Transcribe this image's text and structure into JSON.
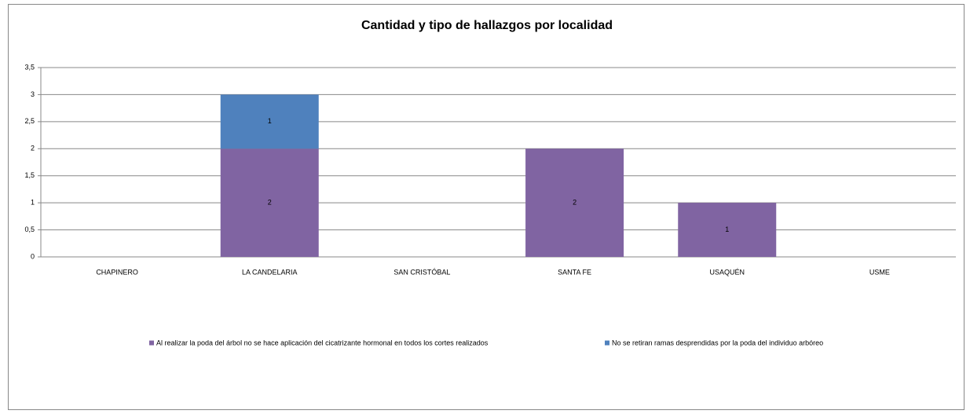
{
  "chart_data": {
    "type": "stacked_bar",
    "title": "Cantidad y tipo de hallazgos por localidad",
    "categories": [
      "CHAPINERO",
      "LA CANDELARIA",
      "SAN CRISTÓBAL",
      "SANTA FE",
      "USAQUÉN",
      "USME"
    ],
    "series": [
      {
        "name": "Al realizar la poda del árbol no se hace aplicación del cicatrizante hormonal en todos los cortes realizados",
        "color": "#8064a2",
        "values": [
          null,
          2,
          null,
          2,
          1,
          null
        ]
      },
      {
        "name": "No se retiran ramas desprendidas por la poda del individuo arbóreo",
        "color": "#4f81bd",
        "values": [
          null,
          1,
          null,
          null,
          null,
          null
        ]
      }
    ],
    "ylim": [
      0,
      3.5
    ],
    "yticks": [
      0,
      {
        "value": 0.5,
        "label": "0,5"
      },
      1,
      {
        "value": 1.5,
        "label": "1,5"
      },
      2,
      {
        "value": 2.5,
        "label": "2,5"
      },
      3,
      {
        "value": 3.5,
        "label": "3,5"
      }
    ],
    "grid": true,
    "legend": "bottom"
  }
}
